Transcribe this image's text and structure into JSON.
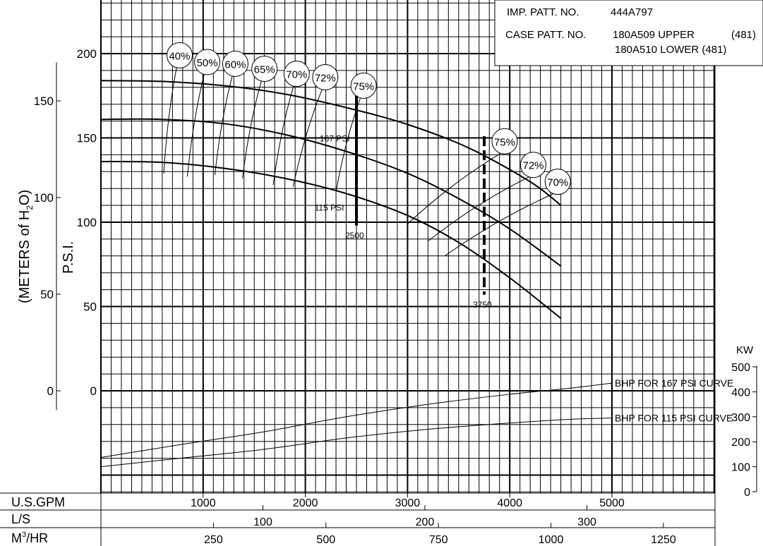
{
  "chart_data": {
    "type": "line",
    "title": "",
    "xlabel": "U.S.GPM",
    "ylabel": "P.S.I.",
    "ylabel_meters": "(METERS of H",
    "ylabel_meters_sub": "2",
    "ylabel_meters_end": "O)",
    "ylabel_kw": "KW",
    "xlim": [
      0,
      6000
    ],
    "ylim_psi": [
      -70,
      220
    ],
    "grid": true,
    "gpm_ticks": [
      "1000",
      "2000",
      "3000",
      "4000",
      "5000"
    ],
    "ls_label": "L/S",
    "ls_ticks": [
      "100",
      "200",
      "300"
    ],
    "m3_label": "M",
    "m3_sup": "3",
    "m3_label_end": "/HR",
    "m3_ticks": [
      "250",
      "500",
      "750",
      "1000",
      "1250"
    ],
    "psi_ticks": [
      "0",
      "50",
      "100",
      "150",
      "200"
    ],
    "meters_ticks": [
      "0",
      "50",
      "100",
      "150"
    ],
    "kw_ticks": [
      "0",
      "100",
      "200",
      "300",
      "400",
      "500"
    ],
    "info": {
      "imp_label": "IMP. PATT. NO.",
      "imp_value": "444A797",
      "case_label": "CASE PATT. NO.",
      "upper": "180A509 UPPER",
      "upper_code": "(481)",
      "lower": "180A510 LOWER (481)"
    },
    "head_curves": [
      {
        "x": [
          0,
          600,
          1200,
          1800,
          2400,
          3000,
          3600,
          4200,
          4500
        ],
        "y": [
          184,
          183.5,
          181,
          176,
          168,
          158,
          144,
          124,
          110
        ]
      },
      {
        "x": [
          0,
          600,
          1200,
          1800,
          2400,
          3000,
          3500,
          4000,
          4500
        ],
        "y": [
          161,
          161,
          158.5,
          152,
          142,
          129,
          114,
          96,
          74
        ]
      },
      {
        "x": [
          0,
          600,
          1200,
          1800,
          2400,
          3000,
          3500,
          4000,
          4500
        ],
        "y": [
          136,
          135.5,
          132,
          126,
          117,
          104,
          88,
          67,
          43
        ]
      }
    ],
    "bhp_curves": [
      {
        "name": "BHP FOR 167 PSI CURVE",
        "kw": [
          137,
          190,
          240,
          300,
          350,
          390,
          415,
          435
        ]
      },
      {
        "name": "BHP FOR 115 PSI CURVE",
        "kw": [
          100,
          135,
          170,
          215,
          250,
          275,
          290,
          295
        ]
      }
    ],
    "bhp_x": [
      0,
      800,
      1600,
      2400,
      3200,
      4000,
      4600,
      5000
    ],
    "limit_lines": [
      {
        "label": "167 PSI",
        "gpm": 2500,
        "psi_top": 175,
        "psi_bottom": 98,
        "style": "solid",
        "bottom_label": "2500"
      },
      {
        "label": "115 PSI",
        "gpm": 3750,
        "psi_top": 151,
        "psi_bottom": 57,
        "style": "dashed",
        "bottom_label": "3750"
      }
    ],
    "eff_left": [
      {
        "label": "40%",
        "x": 770,
        "y": 199,
        "lx0": 615,
        "ly0": 129
      },
      {
        "label": "50%",
        "x": 1040,
        "y": 195,
        "lx0": 845,
        "ly0": 127
      },
      {
        "label": "60%",
        "x": 1315,
        "y": 194,
        "lx0": 1115,
        "ly0": 128
      },
      {
        "label": "65%",
        "x": 1600,
        "y": 191,
        "lx0": 1385,
        "ly0": 126
      },
      {
        "label": "70%",
        "x": 1915,
        "y": 188,
        "lx0": 1685,
        "ly0": 122
      },
      {
        "label": "72%",
        "x": 2195,
        "y": 186,
        "lx0": 1880,
        "ly0": 121
      },
      {
        "label": "75%",
        "x": 2570,
        "y": 181,
        "lx0": 2300,
        "ly0": 118
      }
    ],
    "eff_right": [
      {
        "label": "75%",
        "x": 3950,
        "y": 148,
        "lx0": 3000,
        "ly0": 99
      },
      {
        "label": "72%",
        "x": 4230,
        "y": 134,
        "lx0": 3205,
        "ly0": 89
      },
      {
        "label": "70%",
        "x": 4470,
        "y": 124,
        "lx0": 3365,
        "ly0": 80
      }
    ],
    "flag_167": "167 PSI",
    "flag_115": "115 PSI"
  }
}
